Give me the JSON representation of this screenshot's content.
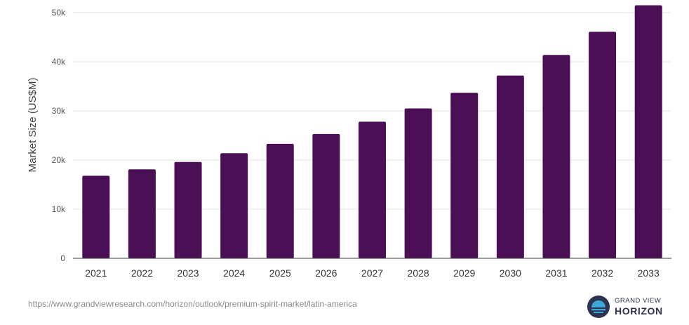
{
  "chart_data": {
    "type": "bar",
    "categories": [
      "2021",
      "2022",
      "2023",
      "2024",
      "2025",
      "2026",
      "2027",
      "2028",
      "2029",
      "2030",
      "2031",
      "2032",
      "2033"
    ],
    "values": [
      16800,
      18100,
      19600,
      21400,
      23300,
      25300,
      27800,
      30500,
      33700,
      37200,
      41400,
      46100,
      51500
    ],
    "ylabel": "Market Size (US$M)",
    "xlabel": "",
    "ylim": [
      0,
      50000
    ],
    "yticks": [
      0,
      10000,
      20000,
      30000,
      40000,
      50000
    ],
    "ytick_labels": [
      "0",
      "10k",
      "20k",
      "30k",
      "40k",
      "50k"
    ],
    "grid": true,
    "legend": "none",
    "bar_color": "#4a0f55"
  },
  "footer": {
    "source_url": "https://www.grandviewresearch.com/horizon/outlook/premium-spirit-market/latin-america",
    "logo_top": "GRAND VIEW",
    "logo_bottom": "HORIZON"
  },
  "colors": {
    "logo_dark": "#2b3350",
    "logo_accent": "#3aa7d8"
  }
}
